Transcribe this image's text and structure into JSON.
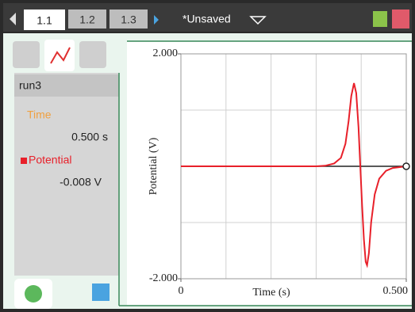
{
  "tabs": [
    "1.1",
    "1.2",
    "1.3"
  ],
  "document_title": "*Unsaved",
  "sidebar": {
    "run": "run3",
    "time_label": "Time",
    "time_value": "0.500 s",
    "potential_value": "-0.008 V"
  },
  "chart_data": {
    "type": "line",
    "xlabel": "Time (s)",
    "ylabel": "Potential (V)",
    "x": [
      0,
      0.3,
      0.32,
      0.34,
      0.355,
      0.365,
      0.372,
      0.378,
      0.384,
      0.389,
      0.394,
      0.398,
      0.402,
      0.406,
      0.41,
      0.413,
      0.417,
      0.422,
      0.43,
      0.44,
      0.455,
      0.47,
      0.5
    ],
    "series": [
      {
        "name": "Potential",
        "color": "#e8202a",
        "values": [
          0,
          0,
          0.01,
          0.05,
          0.15,
          0.4,
          0.8,
          1.25,
          1.48,
          1.3,
          0.7,
          0,
          -0.7,
          -1.3,
          -1.7,
          -1.76,
          -1.55,
          -1.0,
          -0.5,
          -0.22,
          -0.08,
          -0.03,
          0
        ]
      }
    ],
    "xlim": [
      0,
      0.5
    ],
    "ylim": [
      -2,
      2
    ],
    "xticks": [
      0,
      {
        "value": 0.5,
        "label": "0.500"
      }
    ],
    "yticks": [
      {
        "value": 2,
        "label": "2.000"
      },
      {
        "value": -2,
        "label": "-2.000"
      }
    ],
    "xgrid": [
      0.1,
      0.2,
      0.3,
      0.4
    ],
    "ygrid": [
      -1,
      0,
      1
    ],
    "grid": true
  }
}
